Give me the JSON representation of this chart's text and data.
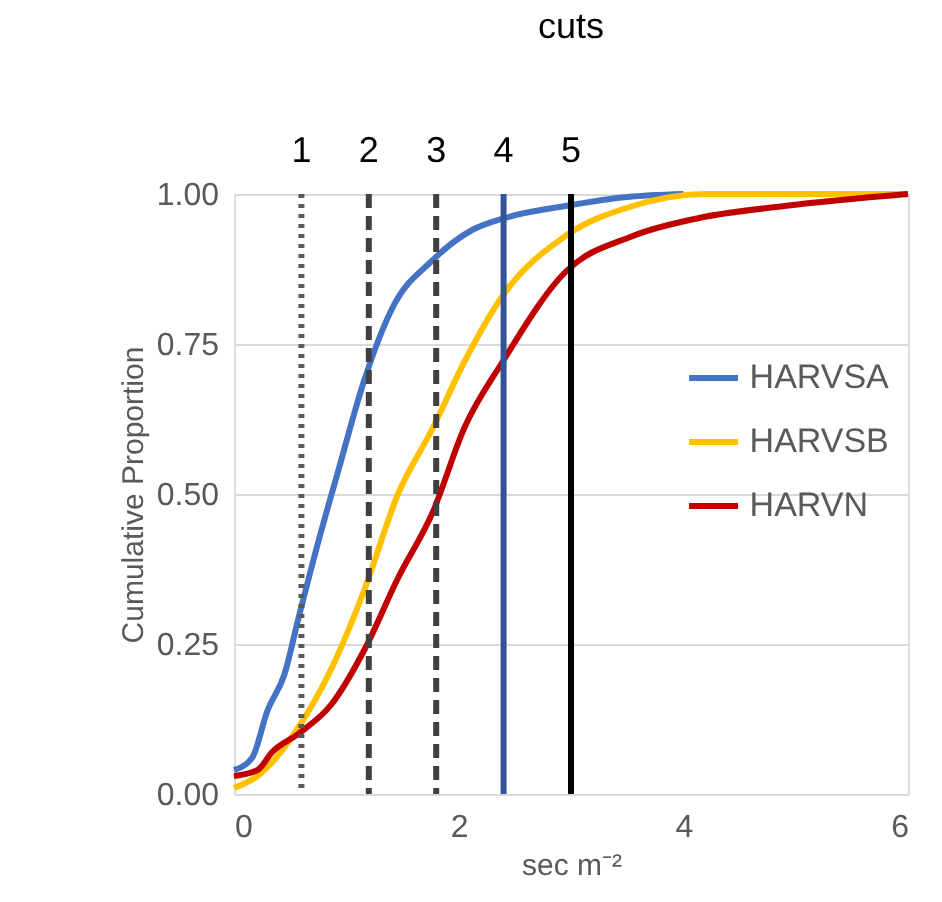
{
  "chart_data": {
    "type": "line",
    "title": "cuts",
    "xlabel": "sec m⁻²",
    "ylabel": "Cumulative Proportion",
    "annotations": [
      "1",
      "2",
      "3",
      "4",
      "5"
    ],
    "xlim": [
      0,
      6
    ],
    "xticks": [
      0,
      2,
      4,
      6
    ],
    "ylim": [
      0,
      1
    ],
    "yticks": [
      {
        "value": 0,
        "label": "0.00"
      },
      {
        "value": 0.25,
        "label": "0.25"
      },
      {
        "value": 0.5,
        "label": "0.50"
      },
      {
        "value": 0.75,
        "label": "0.75"
      },
      {
        "value": 1,
        "label": "1.00"
      }
    ],
    "grid": "y",
    "legend": "right",
    "line_style": "solid",
    "marker": "none",
    "series": [
      {
        "name": "HARVSA",
        "color": "#4472c4",
        "x": [
          0,
          0.16,
          0.3,
          0.45,
          0.57,
          0.75,
          0.93,
          1.16,
          1.41,
          1.77,
          2.12,
          2.41,
          2.95,
          3.5,
          4
        ],
        "values": [
          0.04,
          0.06,
          0.14,
          0.2,
          0.29,
          0.42,
          0.54,
          0.69,
          0.81,
          0.89,
          0.94,
          0.96,
          0.98,
          0.995,
          1
        ]
      },
      {
        "name": "HARVSB",
        "color": "#ffc000",
        "x": [
          0,
          0.21,
          0.57,
          0.87,
          1.16,
          1.46,
          1.77,
          2.05,
          2.39,
          2.95,
          3.55,
          4.2,
          6
        ],
        "values": [
          0.01,
          0.03,
          0.11,
          0.21,
          0.34,
          0.5,
          0.61,
          0.72,
          0.83,
          0.93,
          0.98,
          1,
          1
        ]
      },
      {
        "name": "HARVN",
        "color": "#c00000",
        "x": [
          0,
          0.21,
          0.34,
          0.57,
          0.87,
          1.16,
          1.46,
          1.77,
          2.05,
          2.39,
          2.95,
          3.55,
          4.14,
          4.9,
          6
        ],
        "values": [
          0.03,
          0.04,
          0.07,
          0.1,
          0.15,
          0.24,
          0.36,
          0.47,
          0.61,
          0.72,
          0.87,
          0.93,
          0.96,
          0.98,
          1
        ]
      }
    ],
    "ref_lines": [
      {
        "axis": "x",
        "value": 0.6,
        "color": "#595959",
        "line_style": "dotted"
      },
      {
        "axis": "x",
        "value": 1.2,
        "color": "#404040",
        "line_style": "dashed"
      },
      {
        "axis": "x",
        "value": 1.8,
        "color": "#404040",
        "line_style": "dashed"
      },
      {
        "axis": "x",
        "value": 2.4,
        "color": "#2f5597",
        "line_style": "solid"
      },
      {
        "axis": "x",
        "value": 3.0,
        "color": "#000000",
        "line_style": "solid"
      }
    ]
  }
}
